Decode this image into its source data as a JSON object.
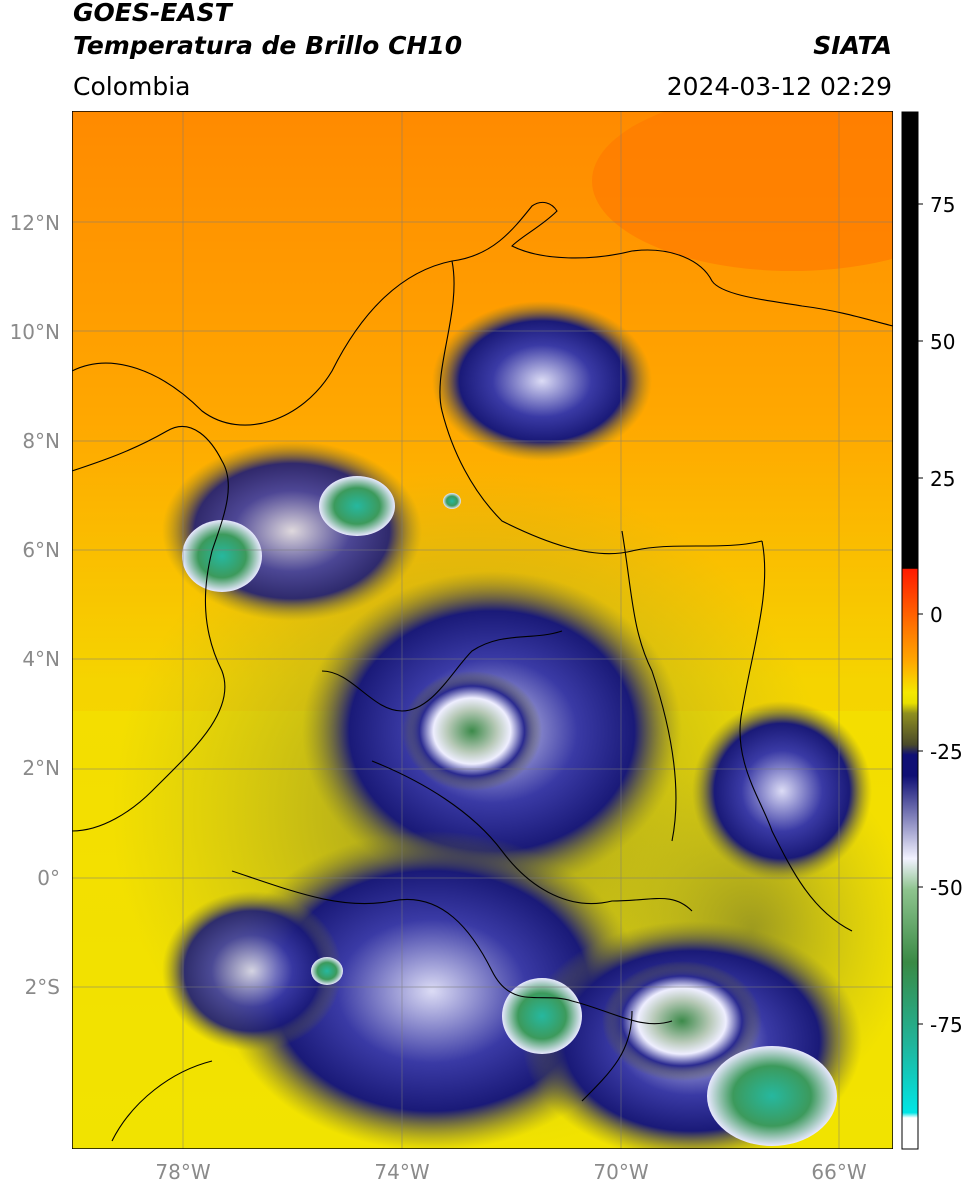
{
  "header": {
    "title_line1": "GOES-EAST",
    "title_line2": "Temperatura de Brillo CH10",
    "brand": "SIATA",
    "region": "Colombia",
    "timestamp": "2024-03-12 02:29"
  },
  "map": {
    "lat_ticks": [
      "12°N",
      "10°N",
      "8°N",
      "6°N",
      "4°N",
      "2°N",
      "0°",
      "2°S"
    ],
    "lon_ticks": [
      "78°W",
      "74°W",
      "70°W",
      "66°W"
    ],
    "gridlines": true
  },
  "colorbar": {
    "ticks": [
      "75",
      "50",
      "25",
      "0",
      "-25",
      "-50",
      "-75"
    ],
    "colors": {
      "black": "#000000",
      "red": "#ff2a00",
      "orange": "#ff8c00",
      "yellow": "#f5e800",
      "olive": "#8f8f1f",
      "navy": "#101075",
      "white": "#ffffff",
      "green": "#3a8a45",
      "teal": "#20b59c",
      "cyan": "#00e5e5"
    }
  }
}
